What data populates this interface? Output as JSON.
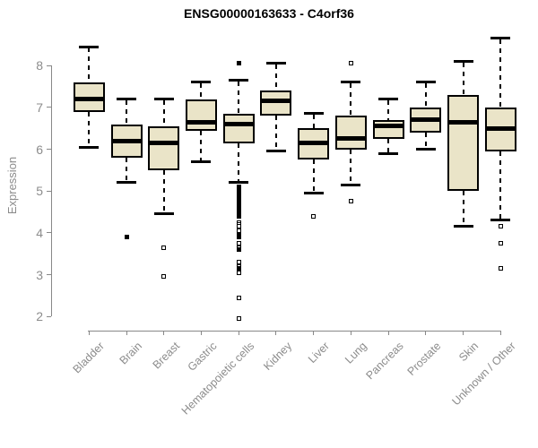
{
  "title": "ENSG00000163633 - C4orf36",
  "ylabel": "Expression",
  "colors": {
    "box_fill": "#eae4c8",
    "box_stroke": "#000000",
    "median": "#000000",
    "axis": "#888888",
    "label_gray": "#8c8c8c",
    "title": "#000000",
    "background": "#ffffff"
  },
  "chart_data": {
    "type": "boxplot",
    "title": "ENSG00000163633 - C4orf36",
    "xlabel": "",
    "ylabel": "Expression",
    "ylim": [
      1.8,
      8.8
    ],
    "y_ticks": [
      2,
      3,
      4,
      5,
      6,
      7,
      8
    ],
    "grid": false,
    "legend": "none",
    "categories": [
      "Bladder",
      "Brain",
      "Breast",
      "Gastric",
      "Hematopoietic cells",
      "Kidney",
      "Liver",
      "Lung",
      "Pancreas",
      "Prostate",
      "Skin",
      "Unknown / Other"
    ],
    "boxes": [
      {
        "category": "Bladder",
        "whisker_low": 6.05,
        "q1": 6.9,
        "median": 7.2,
        "q3": 7.6,
        "whisker_high": 8.45,
        "outliers_open": [],
        "outliers_filled": []
      },
      {
        "category": "Brain",
        "whisker_low": 5.2,
        "q1": 5.8,
        "median": 6.2,
        "q3": 6.6,
        "whisker_high": 7.2,
        "outliers_open": [],
        "outliers_filled": [
          3.9
        ]
      },
      {
        "category": "Breast",
        "whisker_low": 4.45,
        "q1": 5.5,
        "median": 6.15,
        "q3": 6.55,
        "whisker_high": 7.2,
        "outliers_open": [
          3.65,
          2.95
        ],
        "outliers_filled": []
      },
      {
        "category": "Gastric",
        "whisker_low": 5.7,
        "q1": 6.45,
        "median": 6.65,
        "q3": 7.2,
        "whisker_high": 7.6,
        "outliers_open": [],
        "outliers_filled": []
      },
      {
        "category": "Hematopoietic cells",
        "whisker_low": 5.2,
        "q1": 6.15,
        "median": 6.6,
        "q3": 6.85,
        "whisker_high": 7.65,
        "outliers_open": [
          4.25,
          4.2,
          4.15,
          4.05,
          3.75,
          3.65,
          3.3,
          3.2,
          3.05,
          2.45,
          1.95
        ],
        "outliers_filled": [
          8.05,
          5.1,
          5.05,
          5.0,
          4.95,
          4.9,
          4.85,
          4.8,
          4.75,
          4.7,
          4.65,
          4.6,
          4.55,
          4.5,
          4.45,
          4.4,
          3.95,
          3.9,
          3.6,
          3.15
        ]
      },
      {
        "category": "Kidney",
        "whisker_low": 5.95,
        "q1": 6.8,
        "median": 7.15,
        "q3": 7.4,
        "whisker_high": 8.05,
        "outliers_open": [],
        "outliers_filled": []
      },
      {
        "category": "Liver",
        "whisker_low": 4.95,
        "q1": 5.75,
        "median": 6.15,
        "q3": 6.5,
        "whisker_high": 6.85,
        "outliers_open": [
          4.4
        ],
        "outliers_filled": []
      },
      {
        "category": "Lung",
        "whisker_low": 5.15,
        "q1": 6.0,
        "median": 6.25,
        "q3": 6.8,
        "whisker_high": 7.6,
        "outliers_open": [
          8.05,
          4.75
        ],
        "outliers_filled": []
      },
      {
        "category": "Pancreas",
        "whisker_low": 5.9,
        "q1": 6.25,
        "median": 6.55,
        "q3": 6.7,
        "whisker_high": 7.2,
        "outliers_open": [],
        "outliers_filled": []
      },
      {
        "category": "Prostate",
        "whisker_low": 6.0,
        "q1": 6.4,
        "median": 6.7,
        "q3": 7.0,
        "whisker_high": 7.6,
        "outliers_open": [],
        "outliers_filled": []
      },
      {
        "category": "Skin",
        "whisker_low": 4.15,
        "q1": 5.0,
        "median": 6.65,
        "q3": 7.3,
        "whisker_high": 8.1,
        "outliers_open": [],
        "outliers_filled": []
      },
      {
        "category": "Unknown / Other",
        "whisker_low": 4.3,
        "q1": 5.95,
        "median": 6.5,
        "q3": 7.0,
        "whisker_high": 8.65,
        "outliers_open": [
          4.15,
          3.75,
          3.15
        ],
        "outliers_filled": []
      }
    ]
  }
}
